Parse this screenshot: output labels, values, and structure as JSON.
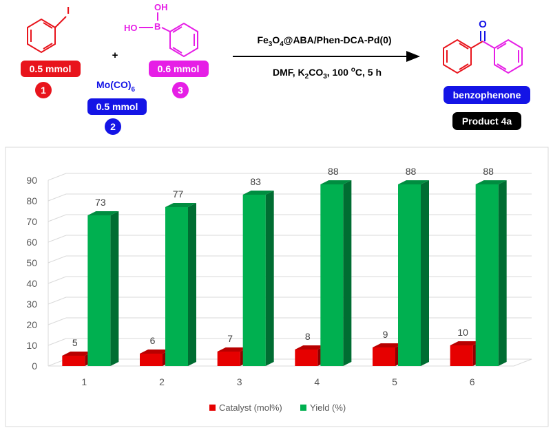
{
  "reaction": {
    "reagent1": {
      "amount": "0.5 mmol",
      "number": "1",
      "color": "#e8141c",
      "substituent": "I"
    },
    "reagent2": {
      "name": "Mo(CO)",
      "name_sub": "6",
      "amount": "0.5 mmol",
      "number": "2",
      "color": "#1414e6"
    },
    "reagent3": {
      "amount": "0.6 mmol",
      "number": "3",
      "color": "#e61ee6",
      "boron": "B",
      "oh_top": "OH",
      "oh_left": "HO"
    },
    "plus": "+",
    "conditions_line1": {
      "p1": "Fe",
      "s1": "3",
      "p2": "O",
      "s2": "4",
      "p3": "@ABA/Phen-DCA-Pd(0)"
    },
    "conditions_line2": {
      "p1": "DMF,  K",
      "s1": "2",
      "p2": "CO",
      "s2": "3",
      "p3": ", 100 ",
      "sup": "o",
      "p4": "C, 5 h"
    },
    "product": {
      "carbonyl_o": "O",
      "name": "benzophenone",
      "label": "Product 4a",
      "ring_color": "#e61ee6",
      "ring2_color": "#e8141c",
      "o_color": "#1414e6"
    }
  },
  "chart_data": {
    "type": "bar",
    "categories": [
      "1",
      "2",
      "3",
      "4",
      "5",
      "6"
    ],
    "series": [
      {
        "name": "Catalyst (mol%)",
        "values": [
          5,
          6,
          7,
          8,
          9,
          10
        ],
        "color": "#e60000"
      },
      {
        "name": "Yield (%)",
        "values": [
          73,
          77,
          83,
          88,
          88,
          88
        ],
        "color": "#00b050"
      }
    ],
    "yticks": [
      0,
      10,
      20,
      30,
      40,
      50,
      60,
      70,
      80,
      90
    ],
    "ylim": [
      0,
      90
    ],
    "grid": true,
    "legend_position": "bottom",
    "style": "3d-column"
  }
}
